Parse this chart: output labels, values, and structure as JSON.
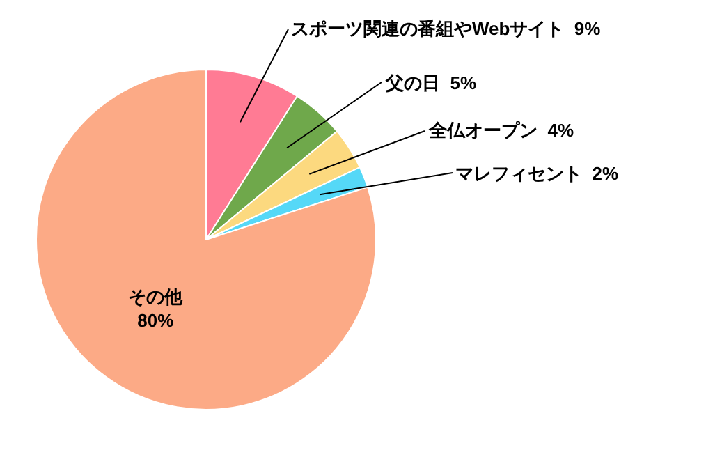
{
  "chart_data": {
    "type": "pie",
    "categories": [
      "スポーツ関連の番組やWebサイト",
      "父の日",
      "全仏オープン",
      "マレフィセント",
      "その他"
    ],
    "values": [
      9,
      5,
      4,
      2,
      80
    ],
    "value_labels": [
      "9%",
      "5%",
      "4%",
      "2%",
      "80%"
    ],
    "colors": [
      "#ff7b94",
      "#6fa84b",
      "#fcd97f",
      "#55d8f7",
      "#fcaa86"
    ],
    "legend": false
  }
}
